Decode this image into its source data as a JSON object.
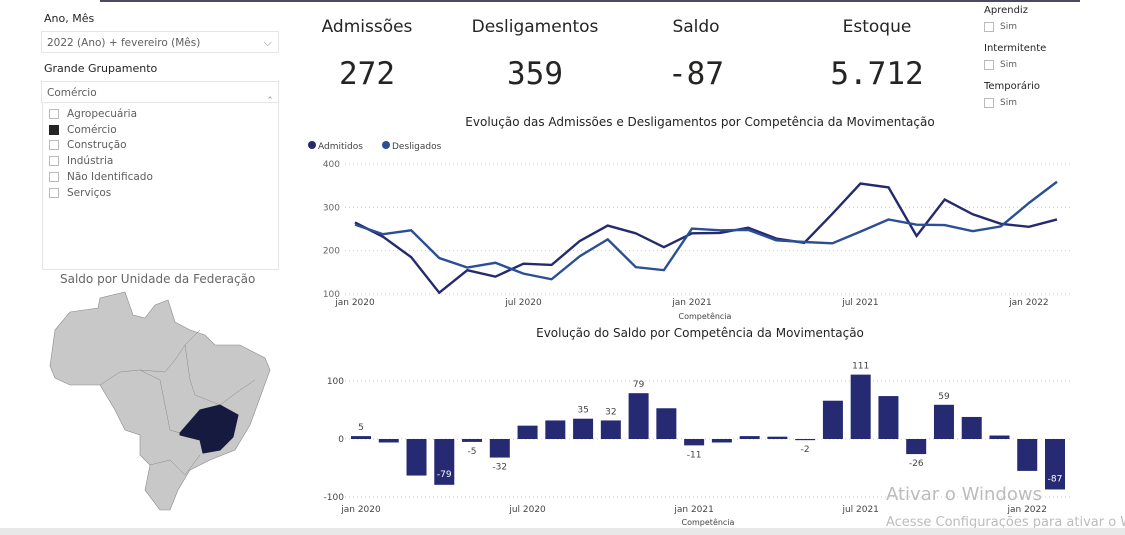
{
  "filters": {
    "period_label": "Ano, Mês",
    "period_value": "2022 (Ano) + fevereiro (Mês)",
    "group_label": "Grande Grupamento",
    "group_value": "Comércio",
    "group_options": [
      {
        "label": "Agropecuária",
        "checked": false
      },
      {
        "label": "Comércio",
        "checked": true
      },
      {
        "label": "Construção",
        "checked": false
      },
      {
        "label": "Indústria",
        "checked": false
      },
      {
        "label": "Não Identificado",
        "checked": false
      },
      {
        "label": "Serviços",
        "checked": false
      }
    ]
  },
  "kpis": [
    {
      "label": "Admissões",
      "value": "272"
    },
    {
      "label": "Desligamentos",
      "value": "359"
    },
    {
      "label": "Saldo",
      "value": "-87"
    },
    {
      "label": "Estoque",
      "value": "5.712"
    }
  ],
  "slicers": [
    {
      "label": "Aprendiz",
      "option": "Sim",
      "checked": false
    },
    {
      "label": "Intermitente",
      "option": "Sim",
      "checked": false
    },
    {
      "label": "Temporário",
      "option": "Sim",
      "checked": false
    }
  ],
  "map": {
    "title": "Saldo por Unidade da Federação",
    "highlight_color": "#161a3f",
    "base_color": "#c8c8c8",
    "highlighted_state": "MG"
  },
  "colors": {
    "admitidos": "#252a6e",
    "desligados": "#2b4f94",
    "bar": "#252a73"
  },
  "chart_data": [
    {
      "type": "line",
      "title": "Evolução das Admissões e Desligamentos por Competência da Movimentação",
      "xlabel": "Competência",
      "ylabel": "",
      "x": [
        "jan 2020",
        "fev 2020",
        "mar 2020",
        "abr 2020",
        "mai 2020",
        "jun 2020",
        "jul 2020",
        "ago 2020",
        "set 2020",
        "out 2020",
        "nov 2020",
        "dez 2020",
        "jan 2021",
        "fev 2021",
        "mar 2021",
        "abr 2021",
        "mai 2021",
        "jun 2021",
        "jul 2021",
        "ago 2021",
        "set 2021",
        "out 2021",
        "nov 2021",
        "dez 2021",
        "jan 2022",
        "fev 2022"
      ],
      "xticks": [
        "jan 2020",
        "jul 2020",
        "jan 2021",
        "jul 2021",
        "jan 2022"
      ],
      "yticks": [
        100,
        200,
        300,
        400
      ],
      "ylim": [
        100,
        400
      ],
      "grid": true,
      "legend": "top-left",
      "series": [
        {
          "name": "Admitidos",
          "values": [
            265,
            232,
            185,
            103,
            155,
            140,
            170,
            167,
            222,
            258,
            240,
            208,
            240,
            241,
            253,
            228,
            218,
            285,
            355,
            346,
            234,
            318,
            284,
            262,
            255,
            272
          ]
        },
        {
          "name": "Desligados",
          "values": [
            260,
            238,
            247,
            183,
            161,
            172,
            147,
            134,
            187,
            226,
            162,
            155,
            251,
            247,
            248,
            224,
            220,
            217,
            244,
            272,
            260,
            259,
            245,
            256,
            310,
            359
          ]
        }
      ]
    },
    {
      "type": "bar",
      "title": "Evolução do Saldo por Competência da Movimentação",
      "xlabel": "Competência",
      "ylabel": "",
      "xticks": [
        "jan 2020",
        "jul 2020",
        "jan 2021",
        "jul 2021",
        "jan 2022"
      ],
      "yticks": [
        -100,
        0,
        100
      ],
      "ylim": [
        -100,
        110
      ],
      "grid": true,
      "values": [
        5,
        -6,
        -63,
        -79,
        -5,
        -32,
        23,
        32,
        35,
        32,
        79,
        53,
        -11,
        -6,
        5,
        4,
        -2,
        66,
        111,
        74,
        -26,
        59,
        38,
        6,
        -55,
        -87
      ],
      "data_labels": {
        "0": "5",
        "3": "-79",
        "4": "-5",
        "5": "-32",
        "8": "35",
        "9": "32",
        "10": "79",
        "12": "-11",
        "16": "-2",
        "18": "111",
        "20": "-26",
        "21": "59",
        "25": "-87"
      }
    }
  ],
  "watermark": {
    "line1": "Ativar o Windows",
    "line2": "Acesse Configurações para ativar o Windows"
  }
}
